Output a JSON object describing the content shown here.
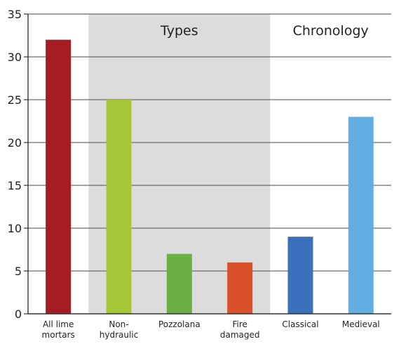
{
  "chart_data": {
    "type": "bar",
    "categories": [
      [
        "All lime",
        "mortars"
      ],
      [
        "Non-",
        "hydraulic"
      ],
      [
        "Pozzolana"
      ],
      [
        "Fire",
        "damaged"
      ],
      [
        "Classical"
      ],
      [
        "Medieval"
      ]
    ],
    "values": [
      32,
      25,
      7,
      6,
      9,
      23
    ],
    "colors": [
      "#a51c24",
      "#a6c838",
      "#6aae44",
      "#d9502a",
      "#3a6fbc",
      "#62aee3"
    ],
    "ylim": [
      0,
      35
    ],
    "yticks": [
      0,
      5,
      10,
      15,
      20,
      25,
      30,
      35
    ],
    "grid": true,
    "groups": [
      {
        "label": "Types",
        "from_category": 1,
        "to_category": 3,
        "shaded": true,
        "shade_color": "#dcdcdc"
      },
      {
        "label": "Chronology",
        "from_category": 4,
        "to_category": 5,
        "shaded": false
      }
    ],
    "title": "",
    "xlabel": "",
    "ylabel": ""
  }
}
